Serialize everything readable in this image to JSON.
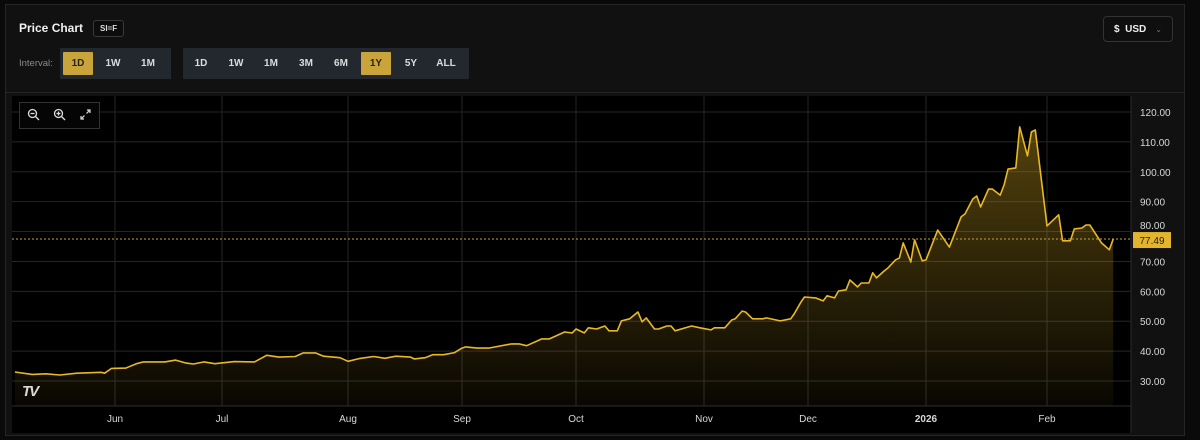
{
  "header": {
    "title": "Price Chart",
    "ticker": "SI=F",
    "interval_label": "Interval:",
    "intervals": [
      {
        "label": "1D",
        "active": true
      },
      {
        "label": "1W",
        "active": false
      },
      {
        "label": "1M",
        "active": false
      }
    ],
    "ranges": [
      {
        "label": "1D",
        "active": false
      },
      {
        "label": "1W",
        "active": false
      },
      {
        "label": "1M",
        "active": false
      },
      {
        "label": "3M",
        "active": false
      },
      {
        "label": "6M",
        "active": false
      },
      {
        "label": "1Y",
        "active": true
      },
      {
        "label": "5Y",
        "active": false
      },
      {
        "label": "ALL",
        "active": false
      }
    ],
    "currency": {
      "symbol": "$",
      "label": "USD",
      "icon": "chevron-down-icon"
    }
  },
  "toolbar": {
    "icons": [
      "zoom-out-icon",
      "zoom-in-icon",
      "expand-icon"
    ]
  },
  "colors": {
    "line": "#e8b923",
    "accent": "#c9a43a",
    "price_label_bg": "#e3b52f",
    "grid": "#262626",
    "background": "#000000"
  },
  "chart_data": {
    "type": "area",
    "xlabel": "",
    "ylabel": "",
    "ylim": [
      30,
      120
    ],
    "y_ticks": [
      "30.00",
      "40.00",
      "50.00",
      "60.00",
      "70.00",
      "80.00",
      "90.00",
      "100.00",
      "110.00",
      "120.00"
    ],
    "x_ticks": [
      {
        "label": "Jun",
        "date": "2025-06-01"
      },
      {
        "label": "Jul",
        "date": "2025-07-01"
      },
      {
        "label": "Aug",
        "date": "2025-08-01"
      },
      {
        "label": "Sep",
        "date": "2025-09-01"
      },
      {
        "label": "Oct",
        "date": "2025-10-01"
      },
      {
        "label": "Nov",
        "date": "2025-11-01"
      },
      {
        "label": "Dec",
        "date": "2025-12-01"
      },
      {
        "label": "2026",
        "date": "2026-01-01"
      },
      {
        "label": "Feb",
        "date": "2026-02-01"
      }
    ],
    "grid": true,
    "last_price": "77.49",
    "series": [
      {
        "points": [
          [
            "2025-05-03",
            33.0
          ],
          [
            "2025-05-08",
            32.2
          ],
          [
            "2025-05-12",
            32.4
          ],
          [
            "2025-05-16",
            32.0
          ],
          [
            "2025-05-21",
            32.6
          ],
          [
            "2025-05-28",
            32.9
          ],
          [
            "2025-05-29",
            32.6
          ],
          [
            "2025-05-31",
            34.2
          ],
          [
            "2025-06-04",
            34.3
          ],
          [
            "2025-06-07",
            35.8
          ],
          [
            "2025-06-09",
            36.4
          ],
          [
            "2025-06-15",
            36.4
          ],
          [
            "2025-06-18",
            37.0
          ],
          [
            "2025-06-21",
            36.0
          ],
          [
            "2025-06-23",
            35.7
          ],
          [
            "2025-06-26",
            36.4
          ],
          [
            "2025-06-29",
            35.8
          ],
          [
            "2025-07-04",
            36.5
          ],
          [
            "2025-07-09",
            36.4
          ],
          [
            "2025-07-12",
            38.6
          ],
          [
            "2025-07-15",
            38.0
          ],
          [
            "2025-07-19",
            38.2
          ],
          [
            "2025-07-21",
            39.4
          ],
          [
            "2025-07-24",
            39.4
          ],
          [
            "2025-07-26",
            38.3
          ],
          [
            "2025-07-30",
            37.8
          ],
          [
            "2025-08-01",
            36.6
          ],
          [
            "2025-08-04",
            37.5
          ],
          [
            "2025-08-08",
            38.2
          ],
          [
            "2025-08-11",
            37.6
          ],
          [
            "2025-08-14",
            38.3
          ],
          [
            "2025-08-18",
            38.0
          ],
          [
            "2025-08-19",
            37.4
          ],
          [
            "2025-08-22",
            37.8
          ],
          [
            "2025-08-24",
            38.8
          ],
          [
            "2025-08-27",
            38.8
          ],
          [
            "2025-08-30",
            39.5
          ],
          [
            "2025-09-01",
            41.0
          ],
          [
            "2025-09-02",
            41.4
          ],
          [
            "2025-09-05",
            41.0
          ],
          [
            "2025-09-08",
            41.0
          ],
          [
            "2025-09-14",
            42.4
          ],
          [
            "2025-09-16",
            42.4
          ],
          [
            "2025-09-18",
            41.8
          ],
          [
            "2025-09-22",
            44.1
          ],
          [
            "2025-09-24",
            44.1
          ],
          [
            "2025-09-28",
            46.4
          ],
          [
            "2025-09-30",
            46.1
          ],
          [
            "2025-10-01",
            47.4
          ],
          [
            "2025-10-03",
            46.1
          ],
          [
            "2025-10-04",
            47.8
          ],
          [
            "2025-10-06",
            47.4
          ],
          [
            "2025-10-08",
            48.4
          ],
          [
            "2025-10-09",
            46.8
          ],
          [
            "2025-10-11",
            46.8
          ],
          [
            "2025-10-12",
            50.1
          ],
          [
            "2025-10-14",
            50.8
          ],
          [
            "2025-10-16",
            53.1
          ],
          [
            "2025-10-17",
            49.8
          ],
          [
            "2025-10-18",
            51.1
          ],
          [
            "2025-10-20",
            47.4
          ],
          [
            "2025-10-21",
            47.4
          ],
          [
            "2025-10-23",
            48.4
          ],
          [
            "2025-10-24",
            48.4
          ],
          [
            "2025-10-25",
            46.8
          ],
          [
            "2025-10-29",
            48.4
          ],
          [
            "2025-10-31",
            47.8
          ],
          [
            "2025-11-03",
            47.1
          ],
          [
            "2025-11-04",
            47.8
          ],
          [
            "2025-11-07",
            47.8
          ],
          [
            "2025-11-09",
            50.4
          ],
          [
            "2025-11-10",
            50.8
          ],
          [
            "2025-11-12",
            53.4
          ],
          [
            "2025-11-13",
            53.1
          ],
          [
            "2025-11-15",
            50.8
          ],
          [
            "2025-11-18",
            50.8
          ],
          [
            "2025-11-19",
            51.1
          ],
          [
            "2025-11-23",
            50.1
          ],
          [
            "2025-11-26",
            50.8
          ],
          [
            "2025-11-27",
            52.4
          ],
          [
            "2025-11-29",
            56.5
          ],
          [
            "2025-11-30",
            58.1
          ],
          [
            "2025-12-03",
            57.8
          ],
          [
            "2025-12-05",
            56.8
          ],
          [
            "2025-12-06",
            58.5
          ],
          [
            "2025-12-08",
            57.8
          ],
          [
            "2025-12-09",
            60.1
          ],
          [
            "2025-12-11",
            60.5
          ],
          [
            "2025-12-12",
            63.8
          ],
          [
            "2025-12-14",
            61.5
          ],
          [
            "2025-12-15",
            62.8
          ],
          [
            "2025-12-17",
            62.8
          ],
          [
            "2025-12-18",
            66.2
          ],
          [
            "2025-12-19",
            64.5
          ],
          [
            "2025-12-21",
            66.8
          ],
          [
            "2025-12-22",
            67.8
          ],
          [
            "2025-12-24",
            70.5
          ],
          [
            "2025-12-25",
            71.2
          ],
          [
            "2025-12-26",
            76.2
          ],
          [
            "2025-12-28",
            69.8
          ],
          [
            "2025-12-29",
            77.2
          ],
          [
            "2025-12-31",
            70.2
          ],
          [
            "2026-01-01",
            70.5
          ],
          [
            "2026-01-04",
            80.5
          ],
          [
            "2026-01-07",
            74.8
          ],
          [
            "2026-01-10",
            84.9
          ],
          [
            "2026-01-11",
            85.9
          ],
          [
            "2026-01-13",
            90.9
          ],
          [
            "2026-01-14",
            91.9
          ],
          [
            "2026-01-15",
            88.2
          ],
          [
            "2026-01-17",
            94.2
          ],
          [
            "2026-01-18",
            94.2
          ],
          [
            "2026-01-20",
            92.2
          ],
          [
            "2026-01-21",
            95.6
          ],
          [
            "2026-01-22",
            100.9
          ],
          [
            "2026-01-24",
            101.3
          ],
          [
            "2026-01-25",
            115.0
          ],
          [
            "2026-01-27",
            105.3
          ],
          [
            "2026-01-28",
            113.3
          ],
          [
            "2026-01-29",
            114.0
          ],
          [
            "2026-02-01",
            81.9
          ],
          [
            "2026-02-04",
            85.6
          ],
          [
            "2026-02-05",
            76.9
          ],
          [
            "2026-02-07",
            76.9
          ],
          [
            "2026-02-08",
            80.9
          ],
          [
            "2026-02-10",
            81.2
          ],
          [
            "2026-02-11",
            82.2
          ],
          [
            "2026-02-12",
            82.2
          ],
          [
            "2026-02-14",
            78.2
          ],
          [
            "2026-02-15",
            76.2
          ],
          [
            "2026-02-17",
            73.9
          ],
          [
            "2026-02-18",
            77.49
          ]
        ]
      }
    ]
  }
}
